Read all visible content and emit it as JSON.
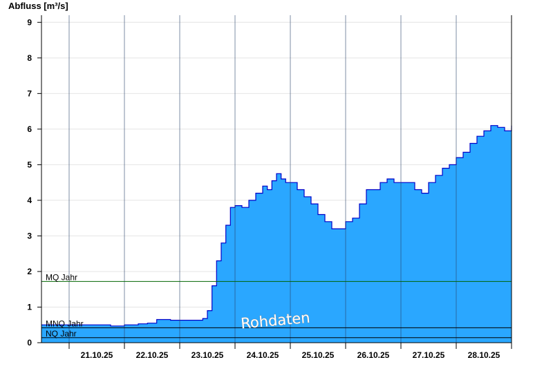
{
  "chart_data": {
    "type": "area",
    "title": "",
    "ylabel": "Abfluss [m³/s]",
    "xlabel": "",
    "ylim": [
      0,
      9.2
    ],
    "yticks": [
      0,
      1,
      2,
      3,
      4,
      5,
      6,
      7,
      8,
      9
    ],
    "grid": true,
    "x_start": "20.10.25 12:00",
    "x_end": "28.10.25 24:00",
    "day_ticks": [
      "21.10.25",
      "22.10.25",
      "23.10.25",
      "24.10.25",
      "25.10.25",
      "26.10.25",
      "27.10.25",
      "28.10.25"
    ],
    "series": [
      {
        "name": "",
        "color": "#2aa7ff",
        "line_color": "#0000c8",
        "x": [
          "20.10.25 12:00",
          "20.10.25 16:00",
          "20.10.25 20:00",
          "21.10.25 00:00",
          "21.10.25 06:00",
          "21.10.25 12:00",
          "21.10.25 18:00",
          "21.10.25 22:00",
          "22.10.25 00:00",
          "22.10.25 06:00",
          "22.10.25 10:00",
          "22.10.25 14:00",
          "22.10.25 18:00",
          "22.10.25 20:00",
          "23.10.25 00:00",
          "23.10.25 06:00",
          "23.10.25 10:00",
          "23.10.25 12:00",
          "23.10.25 14:00",
          "23.10.25 16:00",
          "23.10.25 18:00",
          "23.10.25 20:00",
          "23.10.25 22:00",
          "24.10.25 00:00",
          "24.10.25 03:00",
          "24.10.25 06:00",
          "24.10.25 09:00",
          "24.10.25 12:00",
          "24.10.25 14:00",
          "24.10.25 16:00",
          "24.10.25 18:00",
          "24.10.25 20:00",
          "24.10.25 22:00",
          "25.10.25 00:00",
          "25.10.25 03:00",
          "25.10.25 06:00",
          "25.10.25 09:00",
          "25.10.25 12:00",
          "25.10.25 15:00",
          "25.10.25 18:00",
          "25.10.25 21:00",
          "26.10.25 00:00",
          "26.10.25 03:00",
          "26.10.25 06:00",
          "26.10.25 09:00",
          "26.10.25 12:00",
          "26.10.25 15:00",
          "26.10.25 18:00",
          "26.10.25 21:00",
          "27.10.25 00:00",
          "27.10.25 03:00",
          "27.10.25 06:00",
          "27.10.25 09:00",
          "27.10.25 12:00",
          "27.10.25 15:00",
          "27.10.25 18:00",
          "27.10.25 21:00",
          "28.10.25 00:00",
          "28.10.25 03:00",
          "28.10.25 06:00",
          "28.10.25 09:00",
          "28.10.25 12:00",
          "28.10.25 15:00",
          "28.10.25 18:00",
          "28.10.25 21:00",
          "28.10.25 23:00",
          "28.10.25 24:00"
        ],
        "values": [
          0.5,
          0.5,
          0.5,
          0.5,
          0.5,
          0.5,
          0.47,
          0.47,
          0.5,
          0.53,
          0.55,
          0.65,
          0.65,
          0.63,
          0.63,
          0.63,
          0.68,
          0.9,
          1.6,
          2.3,
          2.8,
          3.3,
          3.8,
          3.85,
          3.8,
          4.0,
          4.2,
          4.4,
          4.3,
          4.55,
          4.75,
          4.6,
          4.5,
          4.5,
          4.3,
          4.1,
          3.9,
          3.6,
          3.4,
          3.2,
          3.2,
          3.4,
          3.5,
          3.9,
          4.3,
          4.3,
          4.5,
          4.6,
          4.5,
          4.5,
          4.5,
          4.3,
          4.2,
          4.5,
          4.7,
          4.9,
          5.0,
          5.2,
          5.35,
          5.6,
          5.8,
          5.95,
          6.1,
          6.05,
          5.95,
          5.95,
          6.1
        ]
      }
    ],
    "reference_lines": [
      {
        "label": "MQ Jahr",
        "value": 1.72,
        "color": "#006400"
      },
      {
        "label": "MNQ Jahr",
        "value": 0.42,
        "color": "#000000"
      },
      {
        "label": "NQ Jahr",
        "value": 0.14,
        "color": "#000000"
      }
    ],
    "annotation": "Rohdaten"
  }
}
